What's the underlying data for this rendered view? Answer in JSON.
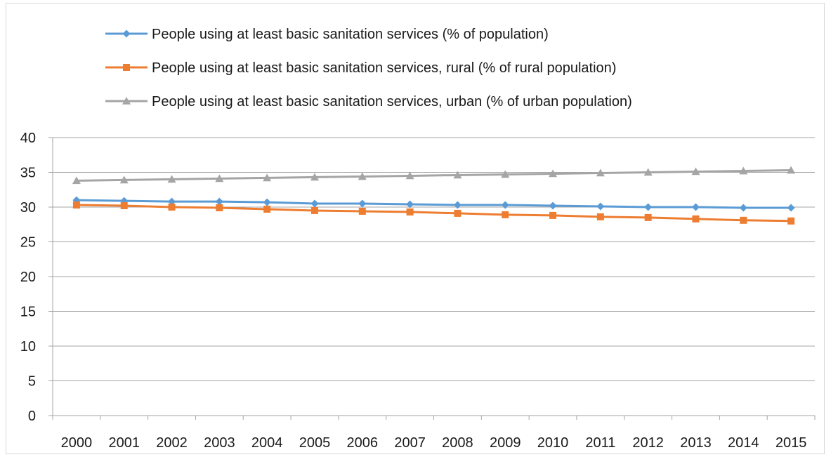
{
  "chart_data": {
    "type": "line",
    "title": "",
    "xlabel": "",
    "ylabel": "",
    "x": [
      "2000",
      "2001",
      "2002",
      "2003",
      "2004",
      "2005",
      "2006",
      "2007",
      "2008",
      "2009",
      "2010",
      "2011",
      "2012",
      "2013",
      "2014",
      "2015"
    ],
    "ylim": [
      0,
      40
    ],
    "yticks": [
      0,
      5,
      10,
      15,
      20,
      25,
      30,
      35,
      40
    ],
    "grid": "horizontal",
    "legend_position": "top",
    "series": [
      {
        "name": "People using at least basic sanitation services (% of population)",
        "color": "#5b9bd5",
        "marker": "diamond",
        "values": [
          31.0,
          30.9,
          30.8,
          30.8,
          30.7,
          30.5,
          30.5,
          30.4,
          30.3,
          30.3,
          30.2,
          30.1,
          30.0,
          30.0,
          29.9,
          29.9
        ]
      },
      {
        "name": "People using at least basic sanitation services, rural (% of rural population)",
        "color": "#ed7d31",
        "marker": "square",
        "values": [
          30.3,
          30.2,
          30.0,
          29.9,
          29.7,
          29.5,
          29.4,
          29.3,
          29.1,
          28.9,
          28.8,
          28.6,
          28.5,
          28.3,
          28.1,
          28.0
        ]
      },
      {
        "name": "People using at least basic sanitation services, urban  (% of urban population)",
        "color": "#a5a5a5",
        "marker": "triangle",
        "values": [
          33.8,
          33.9,
          34.0,
          34.1,
          34.2,
          34.3,
          34.4,
          34.5,
          34.6,
          34.7,
          34.8,
          34.9,
          35.0,
          35.1,
          35.2,
          35.3
        ]
      }
    ]
  }
}
